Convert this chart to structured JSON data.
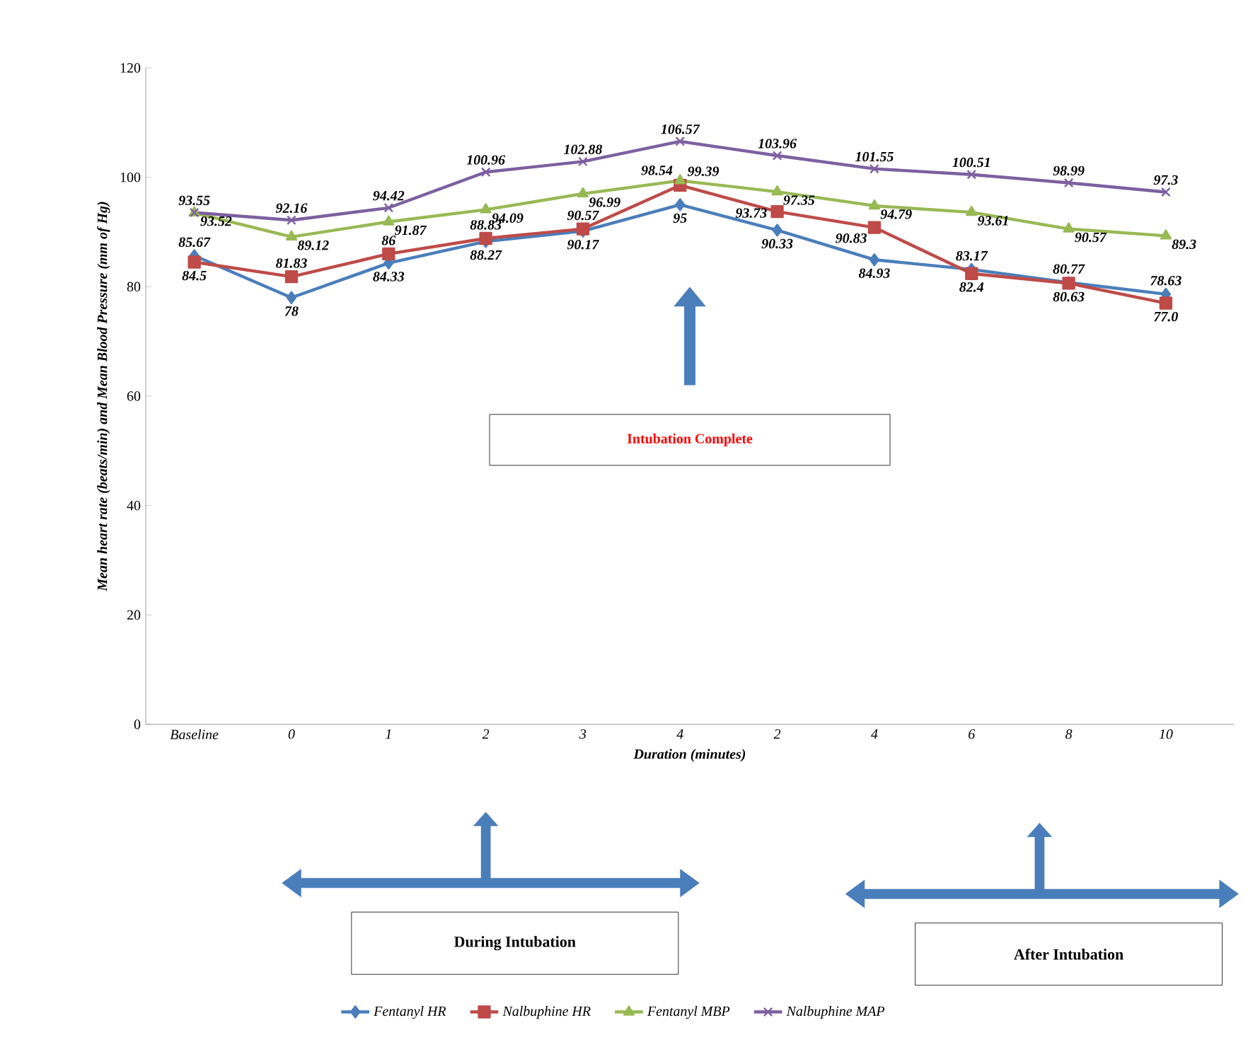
{
  "chart_data": {
    "type": "line",
    "xlabel": "Duration (minutes)",
    "ylabel": "Mean heart rate (beats/min) and Mean Blood Pressure (mm of Hg)",
    "categories": [
      "Baseline",
      "0",
      "1",
      "2",
      "3",
      "4",
      "2",
      "4",
      "6",
      "8",
      "10"
    ],
    "ylim": [
      0,
      120
    ],
    "yticks": [
      0,
      20,
      40,
      60,
      80,
      100,
      120
    ],
    "grid": false,
    "legend": "bottom",
    "series": [
      {
        "name": "Fentanyl HR",
        "color": "#4a7ebb",
        "marker": "diamond",
        "values": [
          85.67,
          78,
          84.33,
          88.27,
          90.17,
          95,
          90.33,
          84.93,
          83.17,
          80.77,
          78.63
        ],
        "value_labels": [
          "85.67",
          "78",
          "84.33",
          "88.27",
          "90.17",
          "95",
          "90.33",
          "84.93",
          "83.17",
          "80.77",
          "78.63"
        ]
      },
      {
        "name": "Nalbuphine HR",
        "color": "#be4b48",
        "marker": "square",
        "values": [
          84.5,
          81.83,
          86,
          88.83,
          90.57,
          98.54,
          93.73,
          90.83,
          82.4,
          80.63,
          77.0
        ],
        "value_labels": [
          "84.5",
          "81.83",
          "86",
          "88.83",
          "90.57",
          "98.54",
          "93.73",
          "90.83",
          "82.4",
          "80.63",
          "77.0"
        ]
      },
      {
        "name": "Fentanyl MBP",
        "color": "#98b954",
        "marker": "triangle",
        "values": [
          93.52,
          89.12,
          91.87,
          94.09,
          96.99,
          99.39,
          97.35,
          94.79,
          93.61,
          90.57,
          89.3
        ],
        "value_labels": [
          "93.52",
          "89.12",
          "91.87",
          "94.09",
          "96.99",
          "99.39",
          "97.35",
          "94.79",
          "93.61",
          "90.57",
          "89.3"
        ]
      },
      {
        "name": "Nalbuphine MAP",
        "color": "#7d60a0",
        "marker": "cross",
        "values": [
          93.55,
          92.16,
          94.42,
          100.96,
          102.88,
          106.57,
          103.96,
          101.55,
          100.51,
          98.99,
          97.3
        ],
        "value_labels": [
          "93.55",
          "92.16",
          "94.42",
          "100.96",
          "102.88",
          "106.57",
          "103.96",
          "101.55",
          "100.51",
          "98.99",
          "97.3"
        ]
      }
    ],
    "annotations": [
      "Intubation Complete",
      "During Intubation",
      "After Intubation"
    ]
  }
}
